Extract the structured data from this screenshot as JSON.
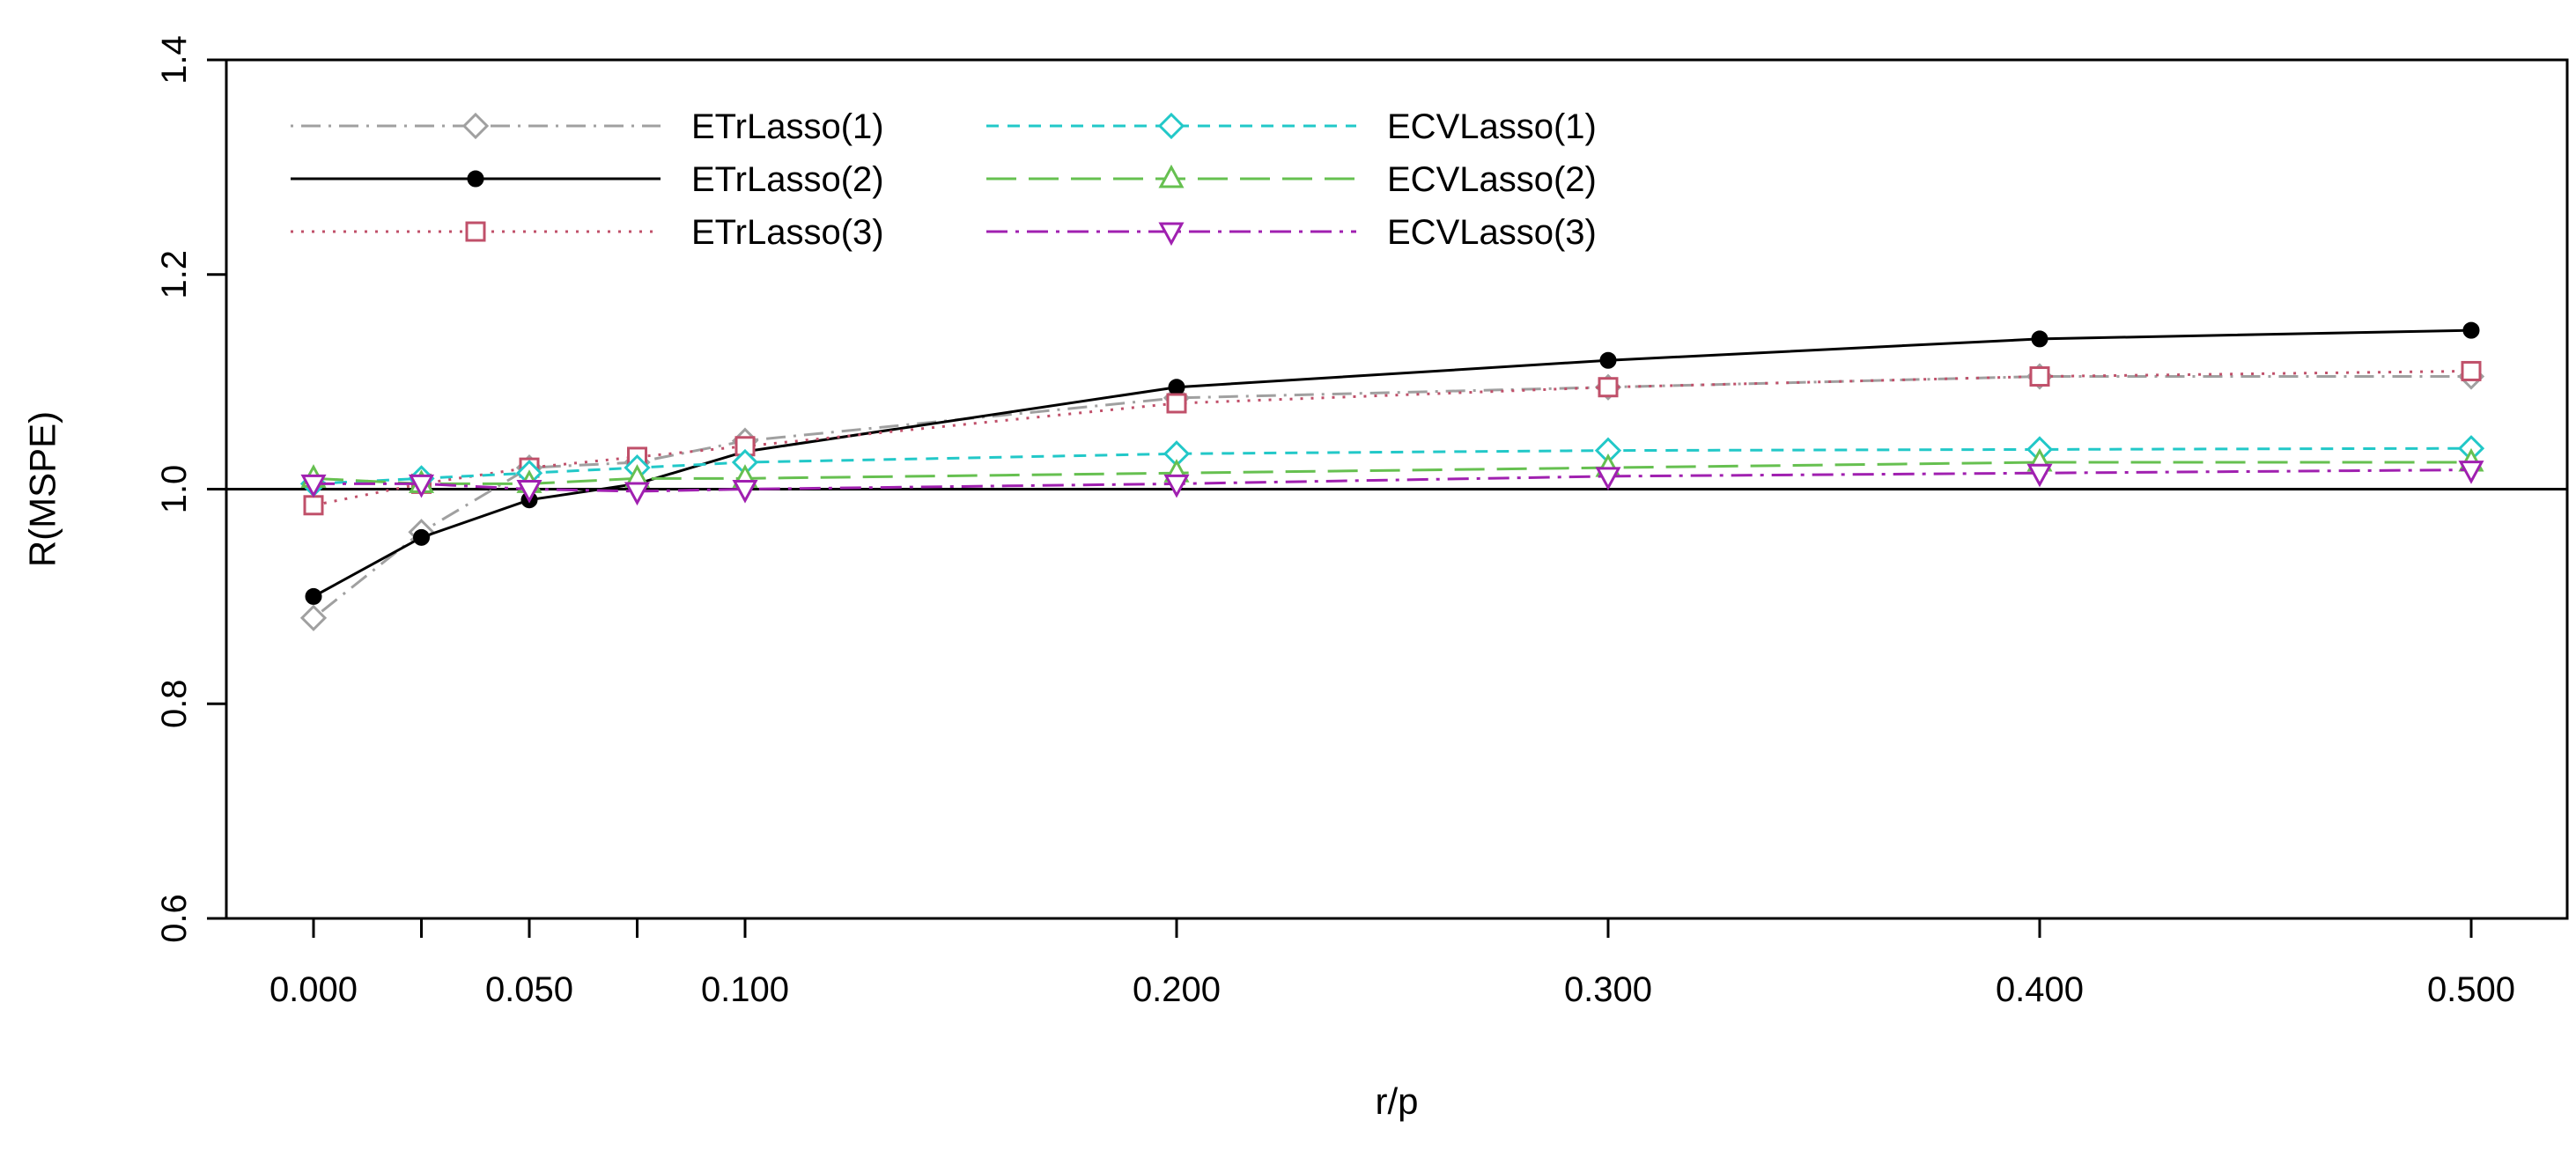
{
  "chart_data": {
    "type": "line",
    "title": "",
    "xlabel": "r/p",
    "ylabel": "R(MSPE)",
    "ylim": [
      0.6,
      1.4
    ],
    "yticks": [
      0.6,
      0.8,
      1.0,
      1.2,
      1.4
    ],
    "ytick_labels": [
      "0.6",
      "0.8",
      "1.0",
      "1.2",
      "1.4"
    ],
    "x": [
      0.0,
      0.025,
      0.05,
      0.075,
      0.1,
      0.2,
      0.3,
      0.4,
      0.5
    ],
    "xtick_labels": [
      "0.000",
      "",
      "0.050",
      "",
      "0.100",
      "0.200",
      "0.300",
      "0.400",
      "0.500"
    ],
    "reference_line": 1.0,
    "legend_position": "top-left",
    "series": [
      {
        "name": "ETrLasso(1)",
        "color": "#a0a0a0",
        "marker": "diamond",
        "dash": "dotdash",
        "values": [
          0.88,
          0.96,
          1.02,
          1.025,
          1.045,
          1.085,
          1.095,
          1.105,
          1.105
        ]
      },
      {
        "name": "ETrLasso(2)",
        "color": "#000000",
        "marker": "filled-circle",
        "dash": "solid",
        "values": [
          0.9,
          0.955,
          0.99,
          1.005,
          1.035,
          1.095,
          1.12,
          1.14,
          1.148
        ]
      },
      {
        "name": "ETrLasso(3)",
        "color": "#c0506a",
        "marker": "square",
        "dash": "dotted",
        "values": [
          0.985,
          1.005,
          1.02,
          1.03,
          1.04,
          1.08,
          1.095,
          1.105,
          1.11
        ]
      },
      {
        "name": "ECVLasso(1)",
        "color": "#22c8c8",
        "marker": "diamond",
        "dash": "dashed",
        "values": [
          1.005,
          1.01,
          1.015,
          1.02,
          1.025,
          1.033,
          1.036,
          1.037,
          1.038
        ]
      },
      {
        "name": "ECVLasso(2)",
        "color": "#66c050",
        "marker": "triangle-up",
        "dash": "longdash",
        "values": [
          1.01,
          1.005,
          1.005,
          1.01,
          1.01,
          1.015,
          1.02,
          1.025,
          1.025
        ]
      },
      {
        "name": "ECVLasso(3)",
        "color": "#a020b0",
        "marker": "triangle-down",
        "dash": "dashdot",
        "values": [
          1.005,
          1.005,
          1.0,
          0.998,
          1.0,
          1.005,
          1.012,
          1.015,
          1.018
        ]
      }
    ]
  }
}
